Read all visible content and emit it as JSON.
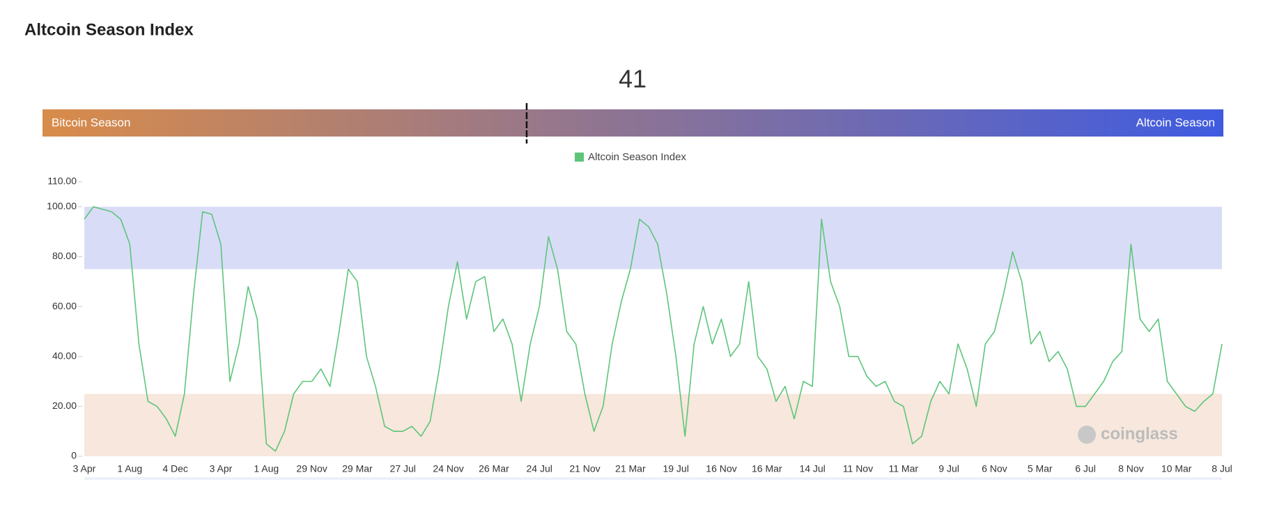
{
  "chart_data": {
    "type": "line",
    "title": "Altcoin Season Index",
    "gauge": {
      "value": 41,
      "left_label": "Bitcoin Season",
      "right_label": "Altcoin Season",
      "colors": [
        "#d98c4a",
        "#3f5be0"
      ]
    },
    "categories": [
      "3 Apr",
      null,
      null,
      null,
      null,
      "1 Aug",
      null,
      null,
      null,
      null,
      "4 Dec",
      null,
      null,
      null,
      null,
      "3 Apr",
      null,
      null,
      null,
      null,
      "1 Aug",
      null,
      null,
      null,
      null,
      "29 Nov",
      null,
      null,
      null,
      null,
      "29 Mar",
      null,
      null,
      null,
      null,
      "27 Jul",
      null,
      null,
      null,
      null,
      "24 Nov",
      null,
      null,
      null,
      null,
      "26 Mar",
      null,
      null,
      null,
      null,
      "24 Jul",
      null,
      null,
      null,
      null,
      "21 Nov",
      null,
      null,
      null,
      null,
      "21 Mar",
      null,
      null,
      null,
      null,
      "19 Jul",
      null,
      null,
      null,
      null,
      "16 Nov",
      null,
      null,
      null,
      null,
      "16 Mar",
      null,
      null,
      null,
      null,
      "14 Jul",
      null,
      null,
      null,
      null,
      "11 Nov",
      null,
      null,
      null,
      null,
      "11 Mar",
      null,
      null,
      null,
      null,
      "9 Jul",
      null,
      null,
      null,
      null,
      "6 Nov",
      null,
      null,
      null,
      null,
      "5 Mar",
      null,
      null,
      null,
      null,
      "6 Jul",
      null,
      null,
      null,
      null,
      "8 Nov",
      null,
      null,
      null,
      null,
      "10 Mar",
      null,
      null,
      null,
      null,
      "8 Jul"
    ],
    "series": [
      {
        "name": "Altcoin Season Index",
        "color": "#5cc57a",
        "values": [
          95,
          100,
          99,
          98,
          95,
          85,
          45,
          22,
          20,
          15,
          8,
          25,
          65,
          98,
          97,
          85,
          30,
          45,
          68,
          55,
          5,
          2,
          10,
          25,
          30,
          30,
          35,
          28,
          50,
          75,
          70,
          40,
          28,
          12,
          10,
          10,
          12,
          8,
          14,
          35,
          60,
          78,
          55,
          70,
          72,
          50,
          55,
          45,
          22,
          45,
          60,
          88,
          75,
          50,
          45,
          25,
          10,
          20,
          45,
          62,
          75,
          95,
          92,
          85,
          65,
          40,
          8,
          45,
          60,
          45,
          55,
          40,
          45,
          70,
          40,
          35,
          22,
          28,
          15,
          30,
          28,
          95,
          70,
          60,
          40,
          40,
          32,
          28,
          30,
          22,
          20,
          5,
          8,
          22,
          30,
          25,
          45,
          35,
          20,
          45,
          50,
          65,
          82,
          70,
          45,
          50,
          38,
          42,
          35,
          20,
          20,
          25,
          30,
          38,
          42,
          85,
          55,
          50,
          55,
          30,
          25,
          20,
          18,
          22,
          25,
          45
        ]
      }
    ],
    "bands": [
      {
        "from": 0,
        "to": 25,
        "color": "#f7e7dc"
      },
      {
        "from": 75,
        "to": 100,
        "color": "#d9dcf7"
      }
    ],
    "ylim": [
      0,
      110
    ],
    "yticks": [
      0,
      {
        "value": 20,
        "label": "20.00"
      },
      {
        "value": 40,
        "label": "40.00"
      },
      {
        "value": 60,
        "label": "60.00"
      },
      {
        "value": 80,
        "label": "80.00"
      },
      {
        "value": 100,
        "label": "100.00"
      },
      {
        "value": 110,
        "label": "110.00"
      }
    ],
    "watermark": "coinglass",
    "legend": "top"
  }
}
